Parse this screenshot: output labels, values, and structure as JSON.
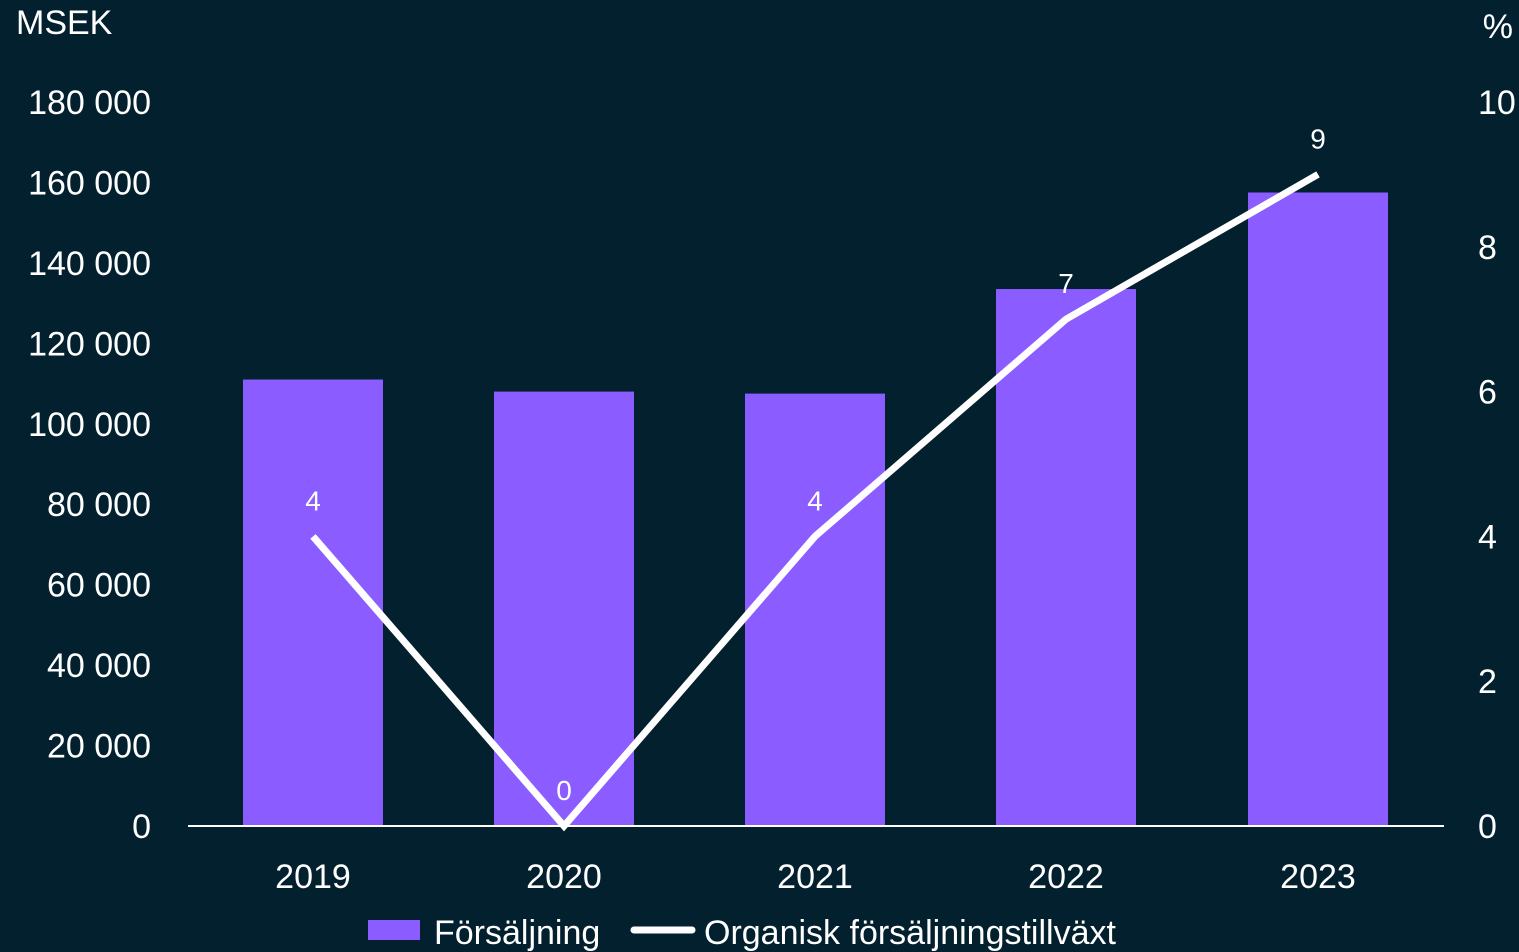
{
  "chart_data": {
    "type": "bar",
    "categories": [
      "2019",
      "2020",
      "2021",
      "2022",
      "2023"
    ],
    "y_left": {
      "unit_label": "MSEK",
      "ylim": [
        0,
        180000
      ],
      "ticks": [
        0,
        20000,
        40000,
        60000,
        80000,
        100000,
        120000,
        140000,
        160000,
        180000
      ],
      "tick_labels": [
        "0",
        "20 000",
        "40 000",
        "60 000",
        "80 000",
        "100 000",
        "120 000",
        "140 000",
        "160 000",
        "180 000"
      ]
    },
    "y_right": {
      "unit_label": "%",
      "ylim": [
        0,
        10
      ],
      "ticks": [
        0,
        2,
        4,
        6,
        8,
        10
      ],
      "tick_labels": [
        "0",
        "2",
        "4",
        "6",
        "8",
        "10"
      ]
    },
    "series": [
      {
        "name": "Försäljning",
        "type": "bar",
        "axis": "left",
        "color": "#8b5cff",
        "values": [
          111000,
          108000,
          107500,
          133500,
          157500
        ]
      },
      {
        "name": "Organisk försäljningstillväxt",
        "type": "line",
        "axis": "right",
        "color": "#ffffff",
        "values": [
          4,
          0,
          4,
          7,
          9
        ],
        "data_labels": [
          "4",
          "0",
          "4",
          "7",
          "9"
        ]
      }
    ],
    "grid": false,
    "legend_position": "bottom-center"
  }
}
